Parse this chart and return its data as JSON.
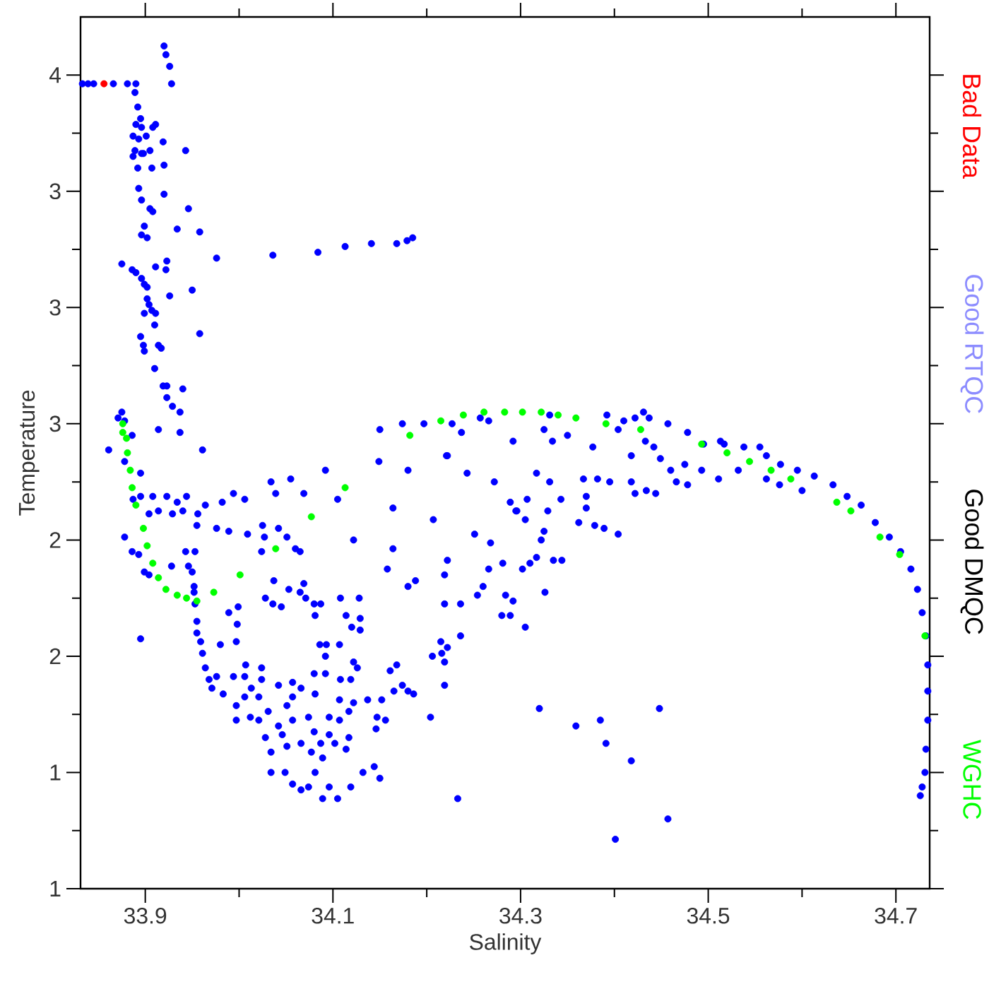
{
  "chart_data": {
    "type": "scatter",
    "xlabel": "Salinity",
    "ylabel": "Temperature",
    "xlim": [
      33.831,
      34.736
    ],
    "ylim": [
      1,
      4
    ],
    "xticks": [
      33.9,
      34.1,
      34.3,
      34.5,
      34.7
    ],
    "yticks": [
      1,
      {
        "value": 1.4,
        "label": "1"
      },
      {
        "value": 1.8,
        "label": "2"
      },
      {
        "value": 2.2,
        "label": "2"
      },
      {
        "value": 2.6,
        "label": "3"
      },
      3,
      {
        "value": 3.4,
        "label": "3"
      },
      {
        "value": 3.8,
        "label": "4"
      }
    ],
    "marker": "circle",
    "legend": "right",
    "annotations": [
      "Good RTQC",
      "Good DMQC"
    ],
    "series": [
      {
        "color": "#0000ff",
        "x": [
          33.833,
          33.839,
          33.845,
          33.866,
          33.881,
          33.89,
          33.92,
          33.922,
          33.926,
          33.928,
          33.889,
          33.892,
          33.895,
          33.89,
          33.896,
          33.887,
          33.893,
          33.901,
          33.889,
          33.896,
          33.905,
          33.908,
          33.911,
          33.887,
          33.892,
          33.898,
          33.919,
          33.943,
          33.907,
          33.92,
          33.893,
          33.896,
          33.905,
          33.908,
          33.92,
          33.946,
          33.934,
          33.958,
          33.896,
          33.899,
          33.902,
          33.976,
          34.036,
          34.084,
          34.113,
          34.141,
          34.168,
          34.179,
          34.185,
          33.875,
          33.886,
          33.89,
          33.896,
          33.899,
          33.902,
          33.911,
          33.922,
          33.923,
          33.926,
          33.95,
          33.902,
          33.904,
          33.899,
          33.907,
          33.911,
          33.91,
          33.958,
          33.895,
          33.898,
          33.899,
          33.914,
          33.917,
          33.91,
          33.919,
          33.923,
          33.94,
          33.923,
          33.929,
          33.937,
          33.914,
          33.937,
          33.961,
          33.871,
          33.875,
          33.878,
          33.886,
          33.861,
          33.878,
          34.15,
          34.174,
          34.197,
          34.227,
          34.237,
          34.257,
          34.266,
          34.292,
          34.222,
          34.149,
          33.895,
          33.887,
          33.895,
          33.908,
          33.923,
          33.934,
          33.944,
          33.904,
          33.914,
          33.929,
          33.94,
          33.956,
          33.964,
          33.982,
          33.994,
          34.006,
          34.034,
          34.039,
          34.055,
          34.069,
          34.092,
          34.105,
          34.18,
          34.164,
          34.207,
          34.221,
          34.243,
          34.272,
          34.289,
          34.296,
          34.251,
          34.268,
          34.222,
          34.219,
          34.281,
          34.266,
          34.26,
          34.254,
          34.236,
          34.219,
          34.284,
          34.28,
          34.289,
          34.292,
          33.878,
          33.886,
          33.893,
          33.899,
          33.904,
          33.895,
          33.928,
          33.943,
          33.953,
          33.946,
          33.95,
          33.952,
          33.952,
          33.955,
          33.976,
          33.989,
          34.009,
          34.025,
          34.027,
          34.042,
          34.051,
          34.06,
          34.065,
          34.024,
          34.037,
          34.053,
          34.069,
          34.122,
          34.158,
          34.164,
          34.18,
          34.188,
          34.028,
          34.036,
          34.045,
          34.065,
          34.071,
          34.08,
          34.087,
          34.108,
          34.128,
          34.114,
          34.12,
          34.129,
          34.129,
          34.081,
          33.989,
          33.999,
          33.998,
          33.997,
          33.98,
          34.086,
          34.093,
          34.107,
          34.092,
          34.122,
          34.126,
          34.08,
          34.092,
          34.108,
          34.119,
          34.161,
          34.168,
          34.165,
          34.174,
          34.18,
          34.186,
          34.152,
          34.204,
          34.215,
          34.206,
          34.216,
          34.222,
          34.219,
          34.219,
          34.236,
          34.233,
          33.953,
          33.955,
          33.955,
          33.959,
          33.961,
          33.964,
          33.968,
          33.971,
          33.983,
          33.994,
          34.007,
          34.024,
          34.024,
          34.006,
          33.997,
          33.997,
          34.012,
          34.021,
          34.031,
          34.042,
          34.057,
          34.057,
          34.051,
          34.042,
          34.046,
          34.051,
          34.066,
          34.028,
          34.034,
          34.034,
          34.049,
          34.057,
          34.066,
          34.074,
          34.081,
          34.089,
          34.096,
          34.105,
          34.119,
          34.132,
          34.144,
          34.15,
          34.077,
          34.087,
          34.096,
          34.102,
          34.114,
          34.117,
          34.107,
          34.096,
          34.122,
          34.08,
          34.089,
          34.074,
          34.057,
          34.066,
          34.081,
          34.107,
          34.147,
          34.156,
          34.146,
          34.137,
          34.117,
          33.976,
          34.006,
          34.021,
          34.013,
          34.331,
          34.392,
          34.422,
          34.431,
          34.437,
          34.457,
          34.478,
          34.495,
          34.513,
          34.517,
          34.538,
          34.555,
          34.562,
          34.577,
          34.595,
          34.613,
          34.633,
          34.648,
          34.663,
          34.678,
          34.693,
          34.705,
          34.716,
          34.723,
          34.728,
          34.732,
          34.734,
          34.734,
          34.734,
          34.732,
          34.731,
          34.728,
          34.726,
          34.325,
          34.334,
          34.35,
          34.377,
          34.404,
          34.41,
          34.418,
          34.433,
          34.442,
          34.449,
          34.46,
          34.466,
          34.475,
          34.478,
          34.493,
          34.511,
          34.532,
          34.562,
          34.576,
          34.6,
          34.418,
          34.422,
          34.434,
          34.444,
          34.395,
          34.382,
          34.367,
          34.37,
          34.37,
          34.362,
          34.379,
          34.389,
          34.404,
          34.331,
          34.317,
          34.343,
          34.329,
          34.325,
          34.322,
          34.317,
          34.335,
          34.344,
          34.31,
          34.302,
          34.305,
          34.295,
          34.307,
          34.326,
          34.305,
          34.32,
          34.448,
          34.359,
          34.385,
          34.391,
          34.418,
          34.457,
          34.401
        ],
        "values": [
          3.77,
          3.77,
          3.77,
          3.77,
          3.77,
          3.77,
          3.9,
          3.87,
          3.83,
          3.77,
          3.74,
          3.69,
          3.65,
          3.63,
          3.62,
          3.59,
          3.58,
          3.59,
          3.54,
          3.53,
          3.54,
          3.62,
          3.63,
          3.52,
          3.48,
          3.53,
          3.57,
          3.54,
          3.48,
          3.49,
          3.41,
          3.37,
          3.34,
          3.33,
          3.39,
          3.34,
          3.27,
          3.26,
          3.25,
          3.28,
          3.24,
          3.17,
          3.18,
          3.19,
          3.21,
          3.22,
          3.22,
          3.23,
          3.24,
          3.15,
          3.13,
          3.12,
          3.1,
          3.08,
          3.07,
          3.14,
          3.13,
          3.16,
          3.04,
          3.06,
          3.03,
          3.01,
          2.98,
          2.99,
          2.98,
          2.94,
          2.91,
          2.9,
          2.87,
          2.85,
          2.87,
          2.86,
          2.79,
          2.73,
          2.73,
          2.72,
          2.69,
          2.66,
          2.64,
          2.58,
          2.57,
          2.51,
          2.62,
          2.64,
          2.61,
          2.56,
          2.51,
          2.47,
          2.58,
          2.6,
          2.6,
          2.6,
          2.57,
          2.62,
          2.61,
          2.54,
          2.49,
          2.47,
          2.43,
          2.34,
          2.35,
          2.35,
          2.35,
          2.33,
          2.35,
          2.29,
          2.3,
          2.29,
          2.3,
          2.29,
          2.32,
          2.33,
          2.36,
          2.34,
          2.4,
          2.36,
          2.41,
          2.36,
          2.44,
          2.34,
          2.44,
          2.31,
          2.27,
          2.49,
          2.43,
          2.4,
          2.33,
          2.3,
          2.22,
          2.19,
          2.13,
          2.08,
          2.12,
          2.1,
          2.04,
          2.01,
          1.98,
          1.98,
          2.01,
          1.94,
          1.94,
          1.99,
          2.21,
          2.16,
          2.15,
          2.09,
          2.08,
          1.86,
          2.11,
          2.16,
          2.16,
          2.11,
          2.09,
          2.04,
          2.02,
          2.25,
          2.24,
          2.23,
          2.22,
          2.25,
          2.21,
          2.24,
          2.21,
          2.17,
          2.16,
          2.16,
          2.06,
          2.03,
          2.05,
          2.2,
          2.1,
          2.17,
          2.04,
          2.06,
          2.0,
          1.98,
          1.97,
          2.02,
          2.0,
          1.98,
          1.98,
          2.0,
          2.0,
          1.94,
          1.9,
          1.89,
          1.93,
          1.94,
          1.95,
          1.97,
          1.91,
          1.85,
          1.84,
          1.84,
          1.84,
          1.84,
          1.8,
          1.78,
          1.76,
          1.74,
          1.74,
          1.72,
          1.72,
          1.75,
          1.77,
          1.68,
          1.7,
          1.68,
          1.67,
          1.65,
          1.59,
          1.85,
          1.8,
          1.81,
          1.83,
          1.78,
          1.7,
          1.87,
          1.31,
          1.98,
          1.92,
          1.88,
          1.85,
          1.81,
          1.76,
          1.72,
          1.69,
          1.67,
          1.73,
          1.77,
          1.76,
          1.72,
          1.66,
          1.63,
          1.58,
          1.59,
          1.58,
          1.61,
          1.7,
          1.71,
          1.66,
          1.63,
          1.56,
          1.53,
          1.49,
          1.5,
          1.52,
          1.47,
          1.4,
          1.4,
          1.36,
          1.34,
          1.35,
          1.4,
          1.31,
          1.35,
          1.31,
          1.35,
          1.4,
          1.42,
          1.38,
          1.47,
          1.5,
          1.53,
          1.5,
          1.48,
          1.52,
          1.58,
          1.59,
          1.64,
          1.54,
          1.45,
          1.59,
          1.58,
          1.69,
          1.67,
          1.65,
          1.59,
          1.58,
          1.55,
          1.65,
          1.61,
          1.73,
          1.73,
          1.66,
          1.69,
          2.63,
          2.63,
          2.62,
          2.64,
          2.62,
          2.6,
          2.57,
          2.53,
          2.54,
          2.53,
          2.52,
          2.52,
          2.49,
          2.46,
          2.44,
          2.42,
          2.39,
          2.35,
          2.32,
          2.26,
          2.21,
          2.16,
          2.1,
          2.03,
          1.95,
          1.87,
          1.77,
          1.68,
          1.58,
          1.48,
          1.4,
          1.35,
          1.32,
          2.58,
          2.54,
          2.56,
          2.52,
          2.58,
          2.61,
          2.49,
          2.54,
          2.52,
          2.48,
          2.44,
          2.4,
          2.46,
          2.39,
          2.44,
          2.41,
          2.44,
          2.41,
          2.39,
          2.37,
          2.4,
          2.36,
          2.37,
          2.36,
          2.4,
          2.41,
          2.41,
          2.35,
          2.31,
          2.26,
          2.25,
          2.24,
          2.22,
          2.4,
          2.43,
          2.34,
          2.3,
          2.23,
          2.2,
          2.14,
          2.13,
          2.13,
          2.12,
          2.1,
          2.27,
          2.3,
          2.34,
          2.02,
          1.9,
          1.62,
          1.62,
          1.56,
          1.58,
          1.5,
          1.44,
          1.24,
          1.17
        ]
      },
      {
        "name": "WGHC",
        "color": "#00ff00",
        "x": [
          33.876,
          33.876,
          33.88,
          33.881,
          33.884,
          33.886,
          33.89,
          33.898,
          33.902,
          33.908,
          33.914,
          33.922,
          33.934,
          33.944,
          33.955,
          33.973,
          34.001,
          34.039,
          34.077,
          34.113,
          34.182,
          34.215,
          34.239,
          34.261,
          34.283,
          34.302,
          34.322,
          34.34,
          34.359,
          34.391,
          34.428,
          34.493,
          34.52,
          34.544,
          34.567,
          34.588,
          34.637,
          34.652,
          34.683,
          34.704,
          34.731
        ],
        "values": [
          2.6,
          2.57,
          2.55,
          2.5,
          2.44,
          2.38,
          2.32,
          2.24,
          2.18,
          2.12,
          2.07,
          2.03,
          2.01,
          2.0,
          1.99,
          2.02,
          2.08,
          2.17,
          2.28,
          2.38,
          2.56,
          2.61,
          2.63,
          2.64,
          2.64,
          2.64,
          2.64,
          2.63,
          2.62,
          2.6,
          2.58,
          2.53,
          2.5,
          2.47,
          2.44,
          2.41,
          2.33,
          2.3,
          2.21,
          2.15,
          1.87
        ]
      },
      {
        "name": "Bad Data",
        "color": "#ff0000",
        "x": [
          33.856
        ],
        "values": [
          3.77
        ]
      }
    ]
  }
}
